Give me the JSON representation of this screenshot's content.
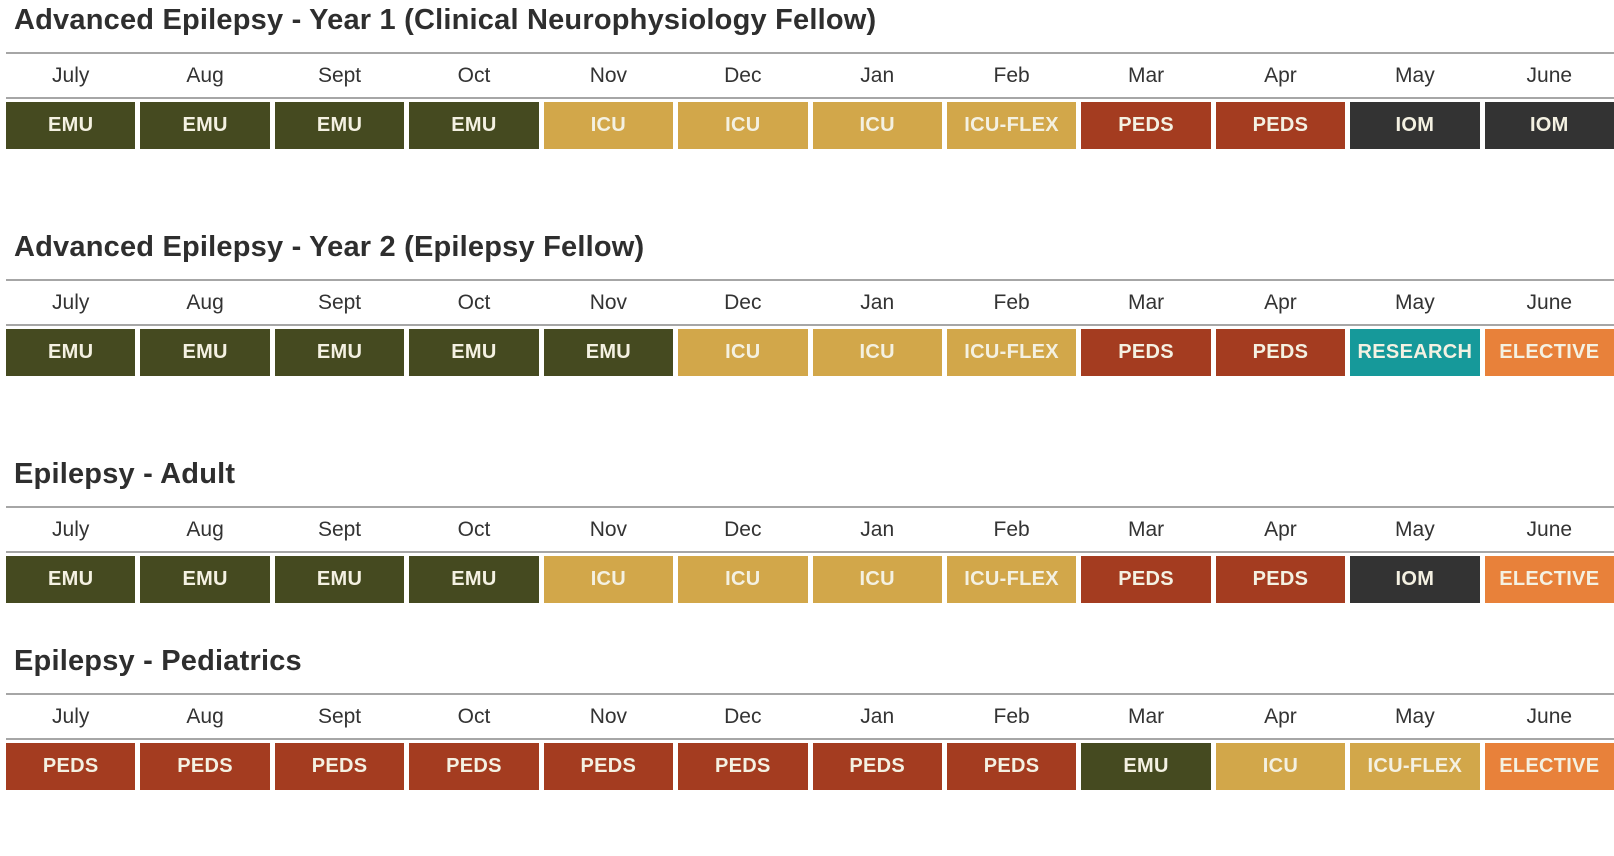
{
  "palette": {
    "EMU": "#454a20",
    "ICU": "#d2a74a",
    "ICU-FLEX": "#d2a74a",
    "PEDS": "#a43c20",
    "IOM": "#333333",
    "RESEARCH": "#16999a",
    "ELECTIVE": "#e8813a",
    "cell_text": "#f4f1e2",
    "title_text": "#2e2e2e",
    "month_text": "#333333",
    "rule": "#a6a6a6"
  },
  "months": [
    "July",
    "Aug",
    "Sept",
    "Oct",
    "Nov",
    "Dec",
    "Jan",
    "Feb",
    "Mar",
    "Apr",
    "May",
    "June"
  ],
  "tables": [
    {
      "title": "Advanced Epilepsy - Year 1 (Clinical Neurophysiology Fellow)",
      "rotations": [
        "EMU",
        "EMU",
        "EMU",
        "EMU",
        "ICU",
        "ICU",
        "ICU",
        "ICU-FLEX",
        "PEDS",
        "PEDS",
        "IOM",
        "IOM"
      ]
    },
    {
      "title": "Advanced Epilepsy - Year 2 (Epilepsy Fellow)",
      "rotations": [
        "EMU",
        "EMU",
        "EMU",
        "EMU",
        "EMU",
        "ICU",
        "ICU",
        "ICU-FLEX",
        "PEDS",
        "PEDS",
        "RESEARCH",
        "ELECTIVE"
      ]
    },
    {
      "title": "Epilepsy - Adult",
      "rotations": [
        "EMU",
        "EMU",
        "EMU",
        "EMU",
        "ICU",
        "ICU",
        "ICU",
        "ICU-FLEX",
        "PEDS",
        "PEDS",
        "IOM",
        "ELECTIVE"
      ]
    },
    {
      "title": "Epilepsy - Pediatrics",
      "rotations": [
        "PEDS",
        "PEDS",
        "PEDS",
        "PEDS",
        "PEDS",
        "PEDS",
        "PEDS",
        "PEDS",
        "EMU",
        "ICU",
        "ICU-FLEX",
        "ELECTIVE"
      ]
    }
  ]
}
